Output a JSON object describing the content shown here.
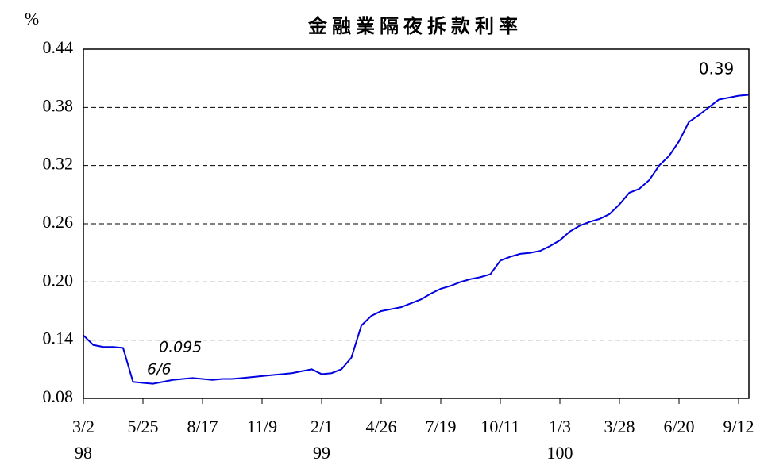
{
  "chart_data": {
    "type": "line",
    "title": "金融業隔夜拆款利率",
    "y_unit": "%",
    "x": [
      "98/3/2",
      "98/3/16",
      "98/3/30",
      "98/4/13",
      "98/4/27",
      "98/5/11",
      "98/5/25",
      "98/6/8",
      "98/6/22",
      "98/7/6",
      "98/7/20",
      "98/8/3",
      "98/8/17",
      "98/8/31",
      "98/9/14",
      "98/9/28",
      "98/10/12",
      "98/10/26",
      "98/11/9",
      "98/11/23",
      "98/12/7",
      "98/12/21",
      "99/1/4",
      "99/1/18",
      "99/2/1",
      "99/2/15",
      "99/3/1",
      "99/3/15",
      "99/3/29",
      "99/4/12",
      "99/4/26",
      "99/5/10",
      "99/5/24",
      "99/6/7",
      "99/6/21",
      "99/7/5",
      "99/7/19",
      "99/8/2",
      "99/8/16",
      "99/8/30",
      "99/9/13",
      "99/9/27",
      "99/10/11",
      "99/10/25",
      "99/11/8",
      "99/11/22",
      "99/12/6",
      "99/12/20",
      "100/1/3",
      "100/1/17",
      "100/1/31",
      "100/2/14",
      "100/2/28",
      "100/3/14",
      "100/3/28",
      "100/4/11",
      "100/4/25",
      "100/5/9",
      "100/5/23",
      "100/6/6",
      "100/6/20",
      "100/7/4",
      "100/7/18",
      "100/8/1",
      "100/8/15",
      "100/8/29",
      "100/9/12",
      "100/9/26"
    ],
    "series": [
      {
        "color": "#0000e0",
        "values": [
          0.145,
          0.135,
          0.133,
          0.133,
          0.132,
          0.097,
          0.096,
          0.095,
          0.097,
          0.099,
          0.1,
          0.101,
          0.1,
          0.099,
          0.1,
          0.1,
          0.101,
          0.102,
          0.103,
          0.104,
          0.105,
          0.106,
          0.108,
          0.11,
          0.105,
          0.106,
          0.11,
          0.122,
          0.155,
          0.165,
          0.17,
          0.172,
          0.174,
          0.178,
          0.182,
          0.188,
          0.193,
          0.196,
          0.2,
          0.203,
          0.205,
          0.208,
          0.222,
          0.226,
          0.229,
          0.23,
          0.232,
          0.237,
          0.243,
          0.252,
          0.258,
          0.262,
          0.265,
          0.27,
          0.28,
          0.292,
          0.296,
          0.305,
          0.32,
          0.33,
          0.345,
          0.365,
          0.372,
          0.38,
          0.388,
          0.39,
          0.392,
          0.393
        ]
      }
    ],
    "ylim": [
      0.08,
      0.44
    ],
    "yticks": [
      {
        "value": 0.08,
        "label": "0.08"
      },
      {
        "value": 0.14,
        "label": "0.14"
      },
      {
        "value": 0.2,
        "label": "0.20"
      },
      {
        "value": 0.26,
        "label": "0.26"
      },
      {
        "value": 0.32,
        "label": "0.32"
      },
      {
        "value": 0.38,
        "label": "0.38"
      },
      {
        "value": 0.44,
        "label": "0.44"
      }
    ],
    "xticks": [
      {
        "value": "98/3/2",
        "label": "3/2"
      },
      {
        "value": "98/5/25",
        "label": "5/25"
      },
      {
        "value": "98/8/17",
        "label": "8/17"
      },
      {
        "value": "98/11/9",
        "label": "11/9"
      },
      {
        "value": "99/2/1",
        "label": "2/1"
      },
      {
        "value": "99/4/26",
        "label": "4/26"
      },
      {
        "value": "99/7/19",
        "label": "7/19"
      },
      {
        "value": "99/10/11",
        "label": "10/11"
      },
      {
        "value": "100/1/3",
        "label": "1/3"
      },
      {
        "value": "100/3/28",
        "label": "3/28"
      },
      {
        "value": "100/6/20",
        "label": "6/20"
      },
      {
        "value": "100/9/12",
        "label": "9/12"
      }
    ],
    "year_labels": [
      {
        "value": "98/3/2",
        "label": "98"
      },
      {
        "value": "99/2/1",
        "label": "99"
      },
      {
        "value": "100/1/3",
        "label": "100"
      }
    ],
    "grid": true,
    "annotations": [
      "0.095",
      "6/6",
      "0.39"
    ]
  }
}
